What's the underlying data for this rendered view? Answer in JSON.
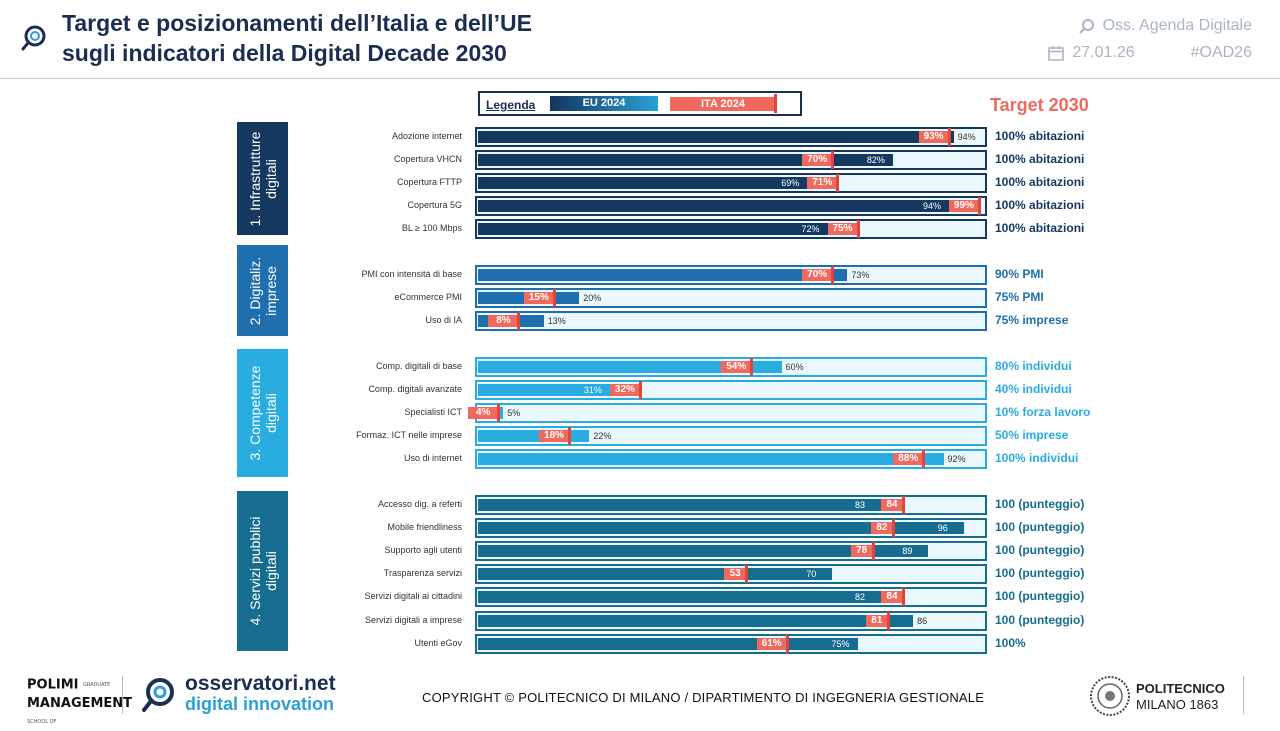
{
  "header": {
    "title_line1": "Target e posizionamenti dell’Italia e dell’UE",
    "title_line2": "sugli indicatori della Digital Decade 2030",
    "brand": "Oss. Agenda Digitale",
    "date": "27.01.26",
    "hashtag": "#OAD26"
  },
  "legend": {
    "label": "Legenda",
    "eu": "EU 2024",
    "ita": "ITA 2024"
  },
  "target_header": "Target 2030",
  "colors": {
    "infra": "#14385f",
    "imprese": "#1f6fae",
    "competenze": "#29ace0",
    "servizi": "#176d8f",
    "ita": "#ef6a5c",
    "ita_tick": "#e0443a",
    "track": "#eaf7fd"
  },
  "chart_data": {
    "type": "bar",
    "title": "Target e posizionamenti dell’Italia e dell’UE sugli indicatori della Digital Decade 2030",
    "series": [
      "EU 2024",
      "ITA 2024"
    ],
    "sections": [
      {
        "name": "1. Infrastrutture digitali",
        "label_lines": [
          "1. Infrastrutture",
          "digitali"
        ],
        "color": "#14385f",
        "unit": "%",
        "rows": [
          {
            "label": "Adozione internet",
            "eu": 94,
            "ita": 93,
            "target": "100% abitazioni"
          },
          {
            "label": "Copertura VHCN",
            "eu": 82,
            "ita": 70,
            "target": "100% abitazioni"
          },
          {
            "label": "Copertura FTTP",
            "eu": 69,
            "ita": 71,
            "target": "100% abitazioni"
          },
          {
            "label": "Copertura 5G",
            "eu": 94,
            "ita": 99,
            "target": "100% abitazioni"
          },
          {
            "label": "BL ≥ 100 Mbps",
            "eu": 72,
            "ita": 75,
            "target": "100% abitazioni"
          }
        ]
      },
      {
        "name": "2. Digitaliz. imprese",
        "label_lines": [
          "2. Digitaliz.",
          "imprese"
        ],
        "color": "#1f6fae",
        "unit": "%",
        "rows": [
          {
            "label": "PMI con intensità di base",
            "eu": 73,
            "ita": 70,
            "target": "90% PMI"
          },
          {
            "label": "eCommerce PMI",
            "eu": 20,
            "ita": 15,
            "target": "75% PMI"
          },
          {
            "label": "Uso di IA",
            "eu": 13,
            "ita": 8,
            "target": "75% imprese"
          }
        ]
      },
      {
        "name": "3. Competenze digitali",
        "label_lines": [
          "3. Competenze",
          "digitali"
        ],
        "color": "#29ace0",
        "unit": "%",
        "rows": [
          {
            "label": "Comp. digitali di base",
            "eu": 60,
            "ita": 54,
            "target": "80% individui"
          },
          {
            "label": "Comp. digitali avanzate",
            "eu": 31,
            "ita": 32,
            "target": "40% individui"
          },
          {
            "label": "Specialisti ICT",
            "eu": 5,
            "ita": 4,
            "target": "10% forza lavoro"
          },
          {
            "label": "Formaz. ICT nelle imprese",
            "eu": 22,
            "ita": 18,
            "target": "50% imprese"
          },
          {
            "label": "Uso di internet",
            "eu": 92,
            "ita": 88,
            "target": "100% individui"
          }
        ]
      },
      {
        "name": "4. Servizi pubblici digitali",
        "label_lines": [
          "4. Servizi pubblici",
          "digitali"
        ],
        "color": "#176d8f",
        "unit": "",
        "rows": [
          {
            "label": "Accesso dig. a referti",
            "eu": 83,
            "ita": 84,
            "target": "100 (punteggio)"
          },
          {
            "label": "Mobile friendliness",
            "eu": 96,
            "ita": 82,
            "target": "100 (punteggio)"
          },
          {
            "label": "Supporto agli utenti",
            "eu": 89,
            "ita": 78,
            "target": "100 (punteggio)"
          },
          {
            "label": "Trasparenza servizi",
            "eu": 70,
            "ita": 53,
            "target": "100 (punteggio)"
          },
          {
            "label": "Servizi digitali ai cittadini",
            "eu": 82,
            "ita": 84,
            "target": "100 (punteggio)"
          },
          {
            "label": "Servizi digitali a imprese",
            "eu": 86,
            "ita": 81,
            "target": "100 (punteggio)"
          },
          {
            "label": "Utenti eGov",
            "eu": 75,
            "ita": 61,
            "unit": "%",
            "target": "100%"
          }
        ]
      }
    ]
  },
  "footer": {
    "polimi_line1": "POLIMI",
    "polimi_line2": "MANAGEMENT",
    "polimi_small1": "GRADUATE",
    "polimi_small2": "SCHOOL OF",
    "oss_name": "osservatori.net",
    "oss_sub": "digital innovation",
    "copyright": "COPYRIGHT © POLITECNICO DI MILANO / DIPARTIMENTO DI INGEGNERIA GESTIONALE",
    "pm_line1": "POLITECNICO",
    "pm_line2": "MILANO 1863"
  }
}
